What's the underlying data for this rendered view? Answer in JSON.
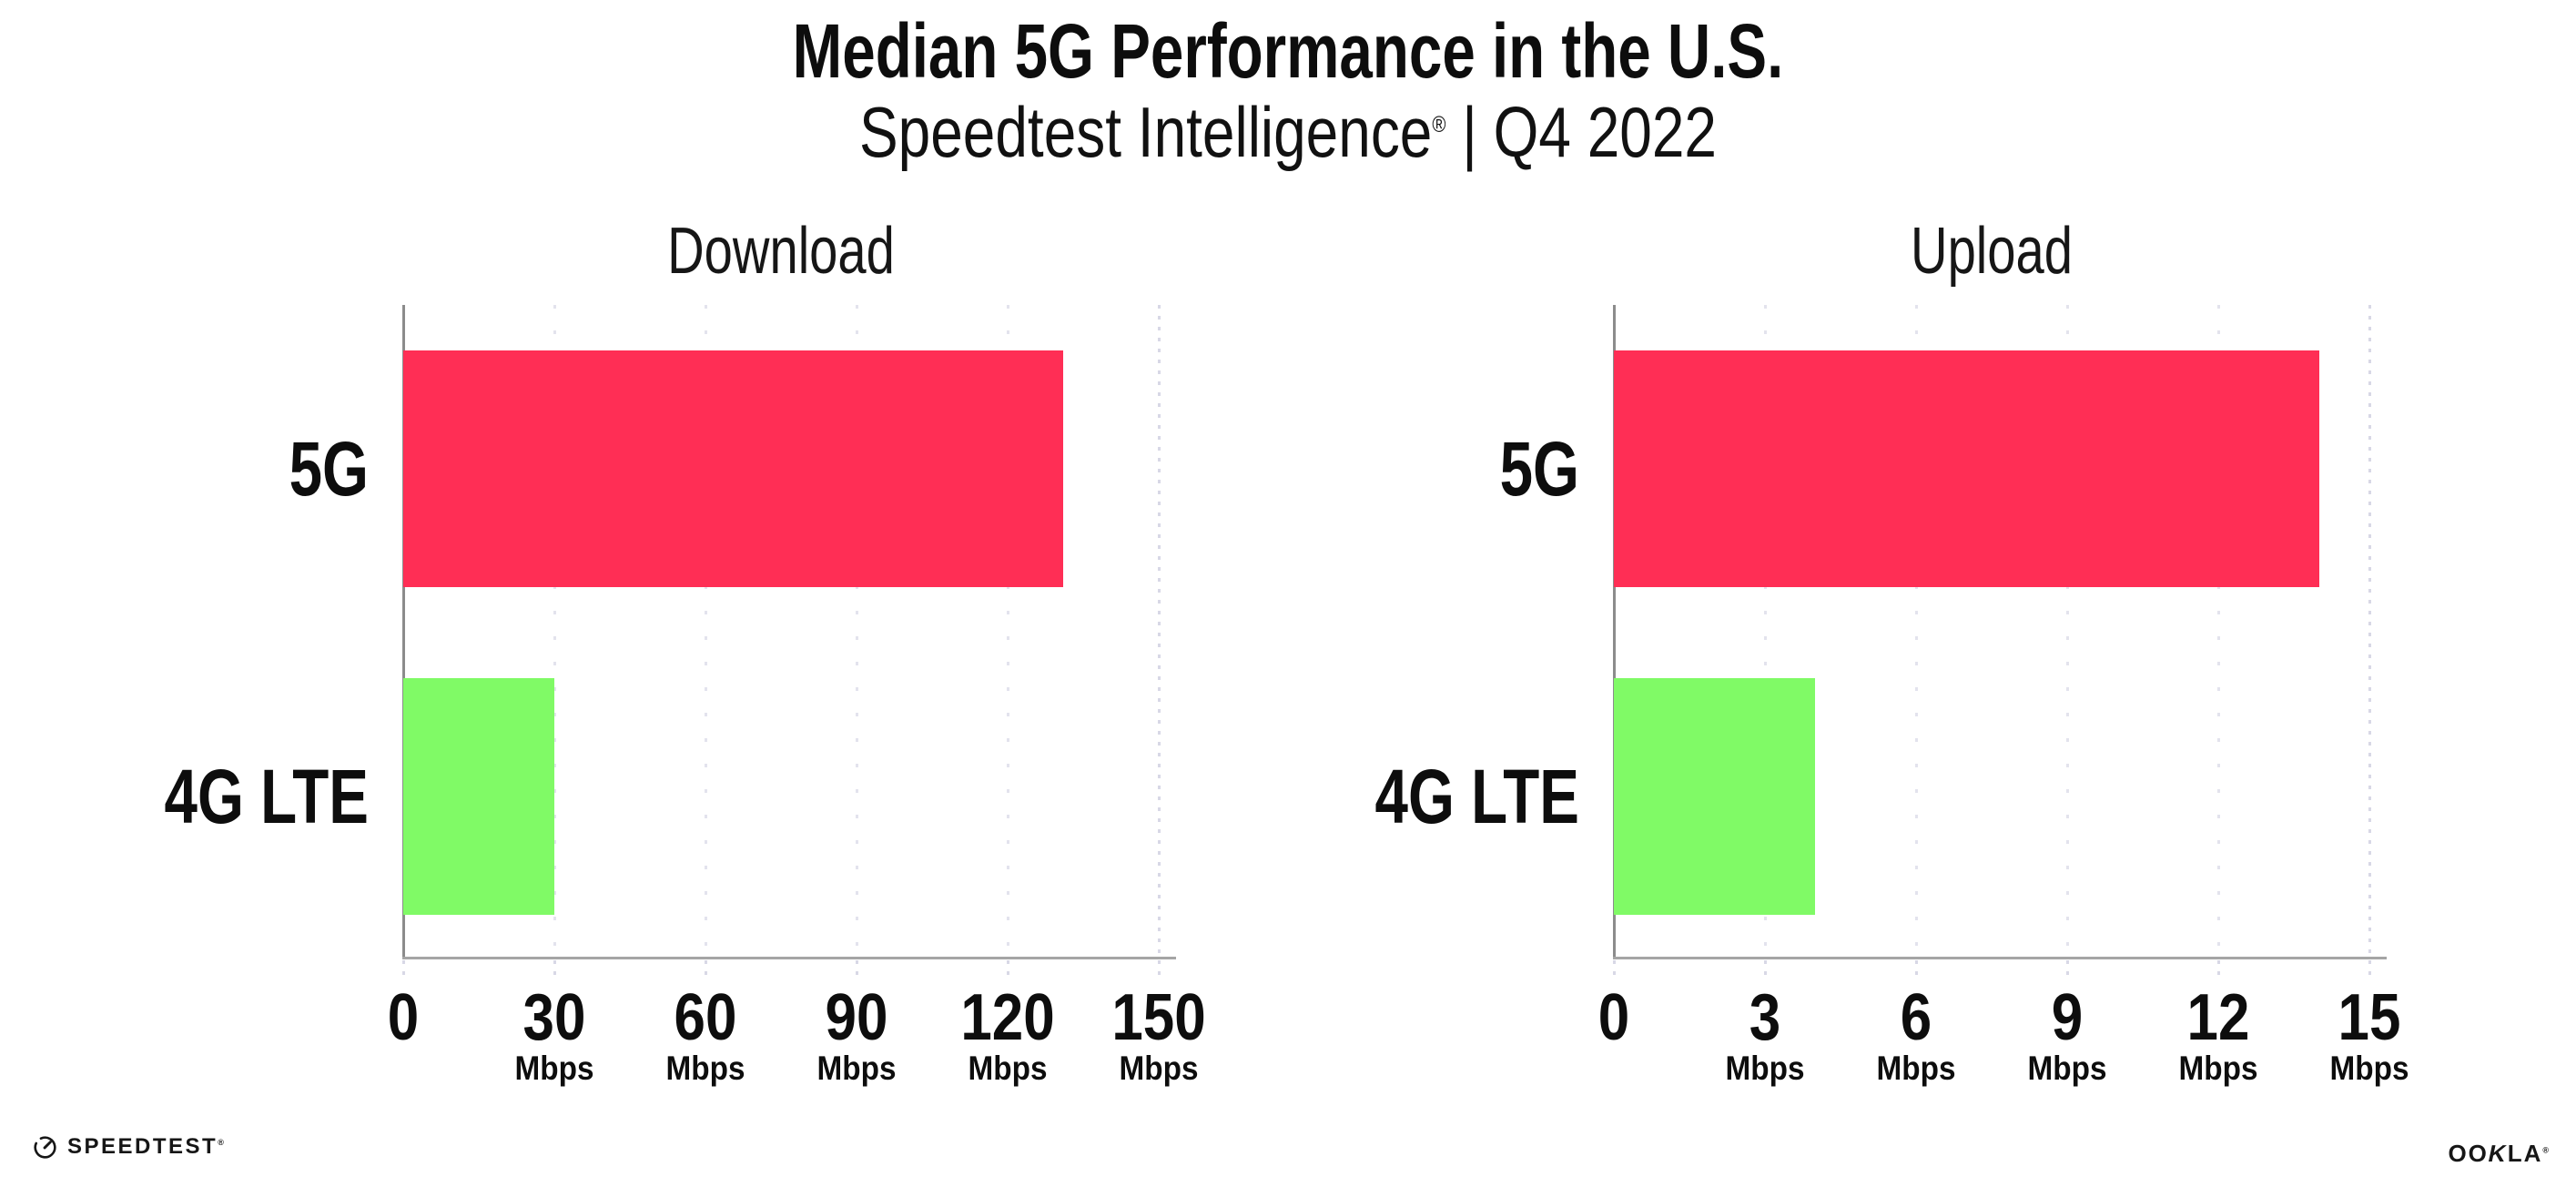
{
  "header": {
    "title": "Median 5G Performance in the U.S.",
    "subtitle_brand": "Speedtest Intelligence",
    "subtitle_reg_mark": "®",
    "subtitle_rest": " | Q4 2022"
  },
  "chart_data": [
    {
      "type": "bar",
      "orientation": "horizontal",
      "title": "Download",
      "categories": [
        "5G",
        "4G LTE"
      ],
      "values": [
        131,
        30
      ],
      "unit": "Mbps",
      "xlabel": "",
      "ylabel": "",
      "xlim": [
        0,
        150
      ],
      "xticks": [
        0,
        30,
        60,
        90,
        120,
        150
      ],
      "grid": "vertical-dotted",
      "legend": "none"
    },
    {
      "type": "bar",
      "orientation": "horizontal",
      "title": "Upload",
      "categories": [
        "5G",
        "4G LTE"
      ],
      "values": [
        14,
        4
      ],
      "unit": "Mbps",
      "xlabel": "",
      "ylabel": "",
      "xlim": [
        0,
        15
      ],
      "xticks": [
        0,
        3,
        6,
        9,
        12,
        15
      ],
      "grid": "vertical-dotted",
      "legend": "none"
    }
  ],
  "colors": {
    "bar_5g": "#FF2E55",
    "bar_4g_lte": "#80FA66",
    "gridline": "#E3E3ED",
    "gridline_dense": "#D8D8E6",
    "axis_x": "#A5A5A5",
    "axis_y": "#8C8C8C",
    "text": "#0D0D0D",
    "background": "#FFFFFF"
  },
  "footer": {
    "speedtest_label": "SPEEDTEST",
    "speedtest_mark": "®",
    "ookla_label_left": "OO",
    "ookla_label_k": "K",
    "ookla_label_right": "LA",
    "ookla_mark": "®"
  }
}
